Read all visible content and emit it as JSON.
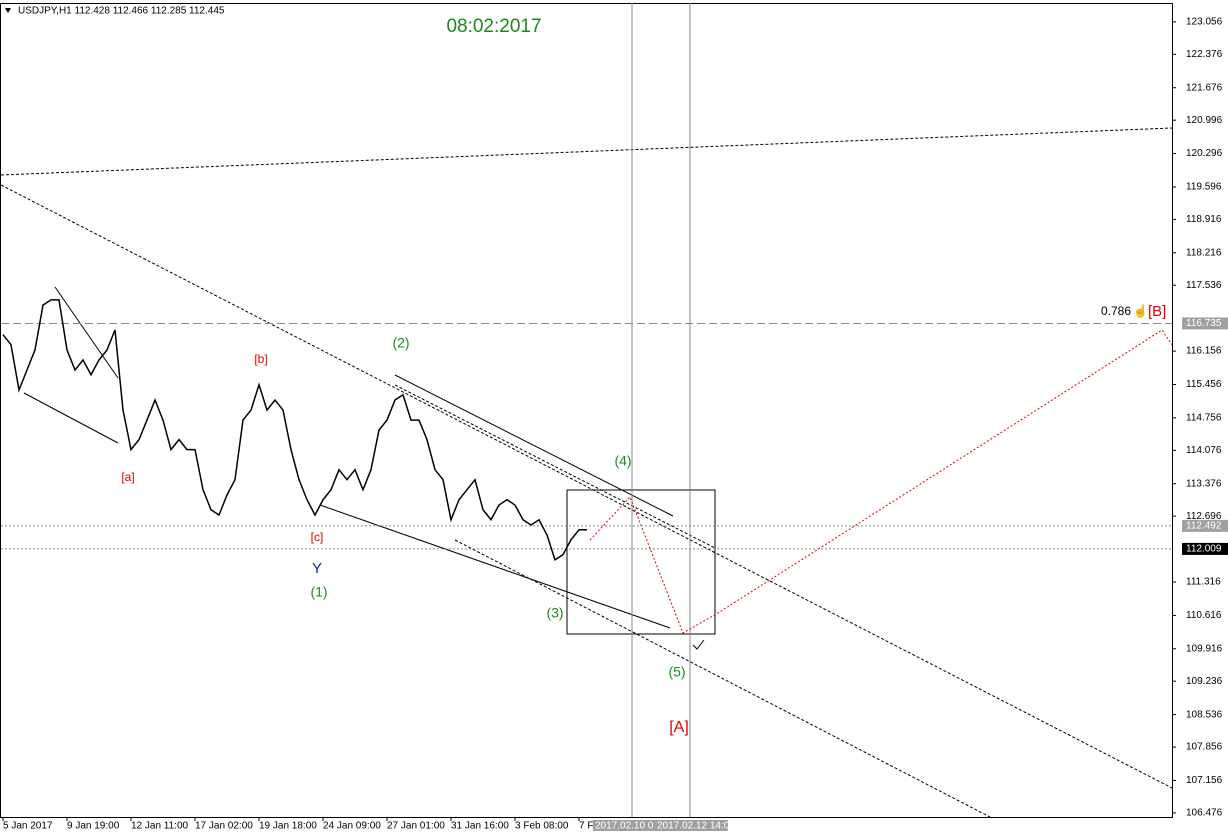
{
  "chart_data": {
    "type": "line",
    "header": "USDJPY,H1  112.428 112.466 112.285 112.445",
    "title": "08:02:2017",
    "categories": [
      "5 Jan 2017",
      null,
      null,
      null,
      null,
      null,
      null,
      null,
      "9 Jan 19:00",
      null,
      null,
      null,
      null,
      null,
      null,
      null,
      "12 Jan 11:00",
      null,
      null,
      null,
      null,
      null,
      null,
      null,
      "17 Jan 02:00",
      null,
      null,
      null,
      null,
      null,
      null,
      null,
      "19 Jan 18:00",
      null,
      null,
      null,
      null,
      null,
      null,
      null,
      "24 Jan 09:00",
      null,
      null,
      null,
      null,
      null,
      null,
      null,
      "27 Jan 01:00",
      null,
      null,
      null,
      null,
      null,
      null,
      null,
      "31 Jan 16:00",
      null,
      null,
      null,
      null,
      null,
      null,
      null,
      "3 Feb 08:00",
      null,
      null,
      null,
      null,
      null,
      null,
      null,
      "7 F",
      null
    ],
    "values": [
      116.5,
      116.29,
      115.34,
      115.76,
      116.18,
      117.12,
      117.23,
      117.23,
      116.18,
      115.76,
      115.97,
      115.66,
      115.97,
      116.18,
      116.6,
      114.92,
      114.09,
      114.3,
      114.71,
      115.13,
      114.71,
      114.09,
      114.3,
      114.09,
      114.09,
      113.25,
      112.83,
      112.72,
      113.14,
      113.46,
      114.71,
      114.92,
      115.45,
      114.92,
      115.13,
      114.92,
      114.09,
      113.46,
      113.04,
      112.72,
      113.04,
      113.25,
      113.67,
      113.46,
      113.67,
      113.25,
      113.67,
      114.5,
      114.71,
      115.13,
      115.24,
      114.71,
      114.71,
      114.3,
      113.67,
      113.46,
      112.62,
      113.04,
      113.25,
      113.46,
      112.83,
      112.62,
      112.93,
      113.04,
      112.93,
      112.62,
      112.51,
      112.62,
      112.3,
      111.78,
      111.89,
      112.2,
      112.41,
      112.41
    ],
    "color": "#000000",
    "ylim": [
      106.39,
      123.41
    ],
    "yticks": [
      123.056,
      122.376,
      121.676,
      120.996,
      120.296,
      119.596,
      118.916,
      118.216,
      117.536,
      116.156,
      115.456,
      114.756,
      114.076,
      113.376,
      112.696,
      111.316,
      110.616,
      109.916,
      109.236,
      108.536,
      107.856,
      107.156,
      106.476
    ],
    "hlines": [
      {
        "value": 116.735,
        "label": "116.735",
        "fill": "#a0a0a0"
      },
      {
        "value": 112.492,
        "label": "112.492",
        "fill": "#a0a0a0"
      },
      {
        "value": 112.009,
        "label": "112.009",
        "fill": "#000000"
      }
    ],
    "vline_labels": [
      "2017.02.10 0",
      "2017.02.12 14:00"
    ],
    "fib_label": "0.786",
    "fib_wave": "[B]",
    "annotations": [
      {
        "text": "[a]",
        "color": "#e00000"
      },
      {
        "text": "[b]",
        "color": "#e00000"
      },
      {
        "text": "[c]",
        "color": "#e00000"
      },
      {
        "text": "Y",
        "color": "#1a1acc"
      },
      {
        "text": "(1)",
        "color": "#1a8a1a"
      },
      {
        "text": "(2)",
        "color": "#1a8a1a"
      },
      {
        "text": "(3)",
        "color": "#1a8a1a"
      },
      {
        "text": "(4)",
        "color": "#1a8a1a"
      },
      {
        "text": "(5)",
        "color": "#1a8a1a"
      },
      {
        "text": "[A]",
        "color": "#e00000"
      }
    ]
  }
}
